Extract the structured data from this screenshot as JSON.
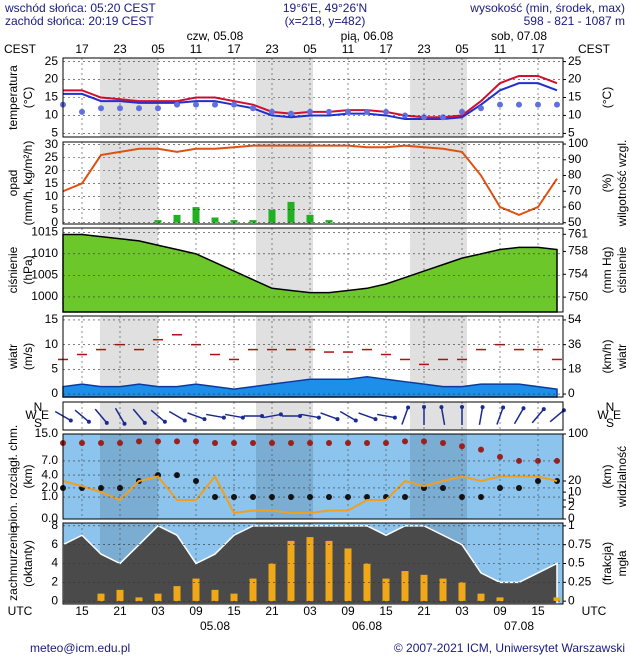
{
  "header": {
    "sunrise": "wschód słońca: 05:20 CEST",
    "sunset": "zachód słońca: 20:19 CEST",
    "coords": "19°6'E, 49°26'N",
    "grid": "(x=218, y=482)",
    "height_title": "wysokość (min, środek, max)",
    "height_values": "598 - 821 - 1087 m"
  },
  "time_axis": {
    "cest_label": "CEST",
    "cest_hours": [
      "17",
      "23",
      "05",
      "11",
      "17",
      "23",
      "05",
      "11",
      "17",
      "23",
      "05",
      "11",
      "17"
    ],
    "dates_top": [
      "czw, 05.08",
      "pią, 06.08",
      "sob, 07.08"
    ],
    "utc_label": "UTC",
    "utc_hours": [
      "15",
      "21",
      "03",
      "09",
      "15",
      "21",
      "03",
      "09",
      "15",
      "21",
      "03",
      "09",
      "15"
    ],
    "dates_bottom": [
      "05.08",
      "06.08",
      "07.08"
    ]
  },
  "footer": {
    "email": "meteo@icm.edu.pl",
    "copyright": "© 2007-2021 ICM, Uniwersytet Warszawski"
  },
  "chart_data": [
    {
      "type": "line",
      "left_label": [
        "temperatura",
        "(°C)"
      ],
      "right_label": [
        "(°C)"
      ],
      "background": "#ffffff",
      "grid": true,
      "ylim": [
        4,
        26
      ],
      "yticks": [
        5,
        10,
        15,
        20,
        25
      ],
      "y2lim": [
        4,
        26
      ],
      "y2ticks": [
        5,
        10,
        15,
        20,
        25
      ],
      "series": [
        {
          "kind": "line",
          "color": "#2030d0",
          "values": [
            16,
            16,
            14,
            14,
            13.5,
            13.5,
            13.5,
            14,
            14,
            13,
            12,
            10,
            9.5,
            10,
            10,
            10.5,
            10.5,
            10,
            9,
            9,
            9,
            9.5,
            13,
            17,
            19,
            19,
            17
          ]
        },
        {
          "kind": "line",
          "color": "#d01030",
          "values": [
            17,
            17,
            15,
            14.5,
            14,
            14,
            14,
            15,
            15,
            14,
            13,
            11,
            10.5,
            11,
            11,
            11.5,
            11.5,
            11,
            10,
            9.5,
            9.5,
            10,
            14,
            19,
            21,
            21,
            19
          ]
        },
        {
          "kind": "dots",
          "color": "#6070e0",
          "values": [
            13,
            11,
            12,
            12,
            12,
            12,
            13,
            13,
            13,
            13,
            12,
            11,
            10.5,
            11,
            11,
            11,
            11,
            11,
            10,
            9.5,
            9.5,
            11,
            12,
            13,
            13,
            13,
            13
          ]
        }
      ]
    },
    {
      "type": "bar",
      "left_label": [
        "opad",
        "(mm/h, kg/m²/h)"
      ],
      "right_label": [
        "(%)",
        "wilgotność wzgl."
      ],
      "background": "#ffffff",
      "grid": true,
      "ylim": [
        -0.5,
        31
      ],
      "yticks": [
        0,
        5,
        10,
        15,
        20,
        25,
        30
      ],
      "y2lim": [
        49.2,
        101.3
      ],
      "y2ticks": [
        50,
        60,
        70,
        80,
        90,
        100
      ],
      "series": [
        {
          "kind": "bar",
          "color": "#20b020",
          "values": [
            0,
            0,
            0,
            0,
            0,
            1,
            3,
            6,
            2,
            1,
            1,
            5,
            8,
            3,
            1,
            0,
            0,
            0,
            0,
            0,
            0,
            0,
            0,
            0,
            0,
            0,
            0
          ]
        },
        {
          "kind": "line",
          "axis": "y2",
          "color": "#e05010",
          "values": [
            70,
            75,
            93,
            95,
            97,
            97,
            95,
            97,
            97,
            98,
            99,
            99,
            99,
            99,
            99,
            99,
            98,
            98,
            99,
            98,
            97,
            95,
            80,
            60,
            55,
            60,
            78
          ]
        }
      ]
    },
    {
      "type": "area",
      "left_label": [
        "ciśnienie",
        "(hPa)"
      ],
      "right_label": [
        "(mm Hg)",
        "ciśnienie"
      ],
      "background": "#ffffff",
      "grid": true,
      "ylim": [
        996.5,
        1016
      ],
      "yticks": [
        1000,
        1005,
        1010,
        1015
      ],
      "y2lim": [
        747.4,
        762.1
      ],
      "y2ticks": [
        750,
        754,
        758,
        761
      ],
      "series": [
        {
          "kind": "area",
          "color": "#6cc82a",
          "line": "#000000",
          "values": [
            1014.5,
            1014.5,
            1014,
            1013.5,
            1013,
            1012,
            1011,
            1010,
            1008,
            1006,
            1004,
            1002,
            1001.5,
            1001,
            1001,
            1001.5,
            1002,
            1003,
            1004.5,
            1006,
            1007.5,
            1009,
            1010,
            1011,
            1011.5,
            1011.5,
            1011
          ]
        }
      ]
    },
    {
      "type": "area",
      "left_label": [
        "wiatr",
        "(m/s)"
      ],
      "right_label": [
        "(km/h)",
        "wiatr"
      ],
      "background": "#ffffff",
      "grid": true,
      "ylim": [
        -0.6,
        15.8
      ],
      "yticks": [
        0,
        5,
        10,
        15
      ],
      "y2lim": [
        -2.16,
        56.88
      ],
      "y2ticks": [
        0,
        18,
        36,
        54
      ],
      "series": [
        {
          "kind": "area",
          "color": "#1e8fe8",
          "line": "#0a3aa0",
          "values": [
            1.5,
            2,
            1.5,
            1.5,
            2,
            1.5,
            1.5,
            2,
            1.5,
            1,
            1.5,
            2,
            2.5,
            3,
            3,
            3,
            3.5,
            3,
            2.5,
            2,
            1.5,
            1.5,
            2,
            2,
            2,
            1.5,
            1
          ]
        },
        {
          "kind": "dashes",
          "color": "#b01010",
          "values": [
            7,
            8,
            9,
            10,
            9,
            11,
            12,
            10,
            8,
            7,
            9,
            9,
            9,
            9,
            8.5,
            8.5,
            9,
            8,
            7,
            6,
            7,
            7,
            9,
            10,
            9,
            9,
            7
          ]
        }
      ]
    },
    {
      "type": "arrows",
      "compass": [
        "N",
        "W",
        "E",
        "S"
      ],
      "background": "#ffffff",
      "series": [
        {
          "kind": "arrows",
          "color": "#1a2a90",
          "values": [
            300,
            310,
            320,
            330,
            320,
            310,
            300,
            290,
            280,
            280,
            270,
            260,
            270,
            280,
            290,
            300,
            290,
            280,
            200,
            180,
            170,
            180,
            190,
            200,
            210,
            220,
            230
          ]
        }
      ]
    },
    {
      "type": "scatter",
      "left_label": [
        "pion. rozciągł. chm.",
        "(km)"
      ],
      "right_label": [
        "(km)",
        "widzialność"
      ],
      "background": "#8cc4ee",
      "grid": true,
      "yscale": "sqrt",
      "ylim": [
        0,
        15
      ],
      "yticks": [
        {
          "value": 0,
          "label": "0.0"
        },
        {
          "value": 1,
          "label": "1.0"
        },
        {
          "value": 2,
          "label": "2.0"
        },
        {
          "value": 4,
          "label": "4.0"
        },
        {
          "value": 7,
          "label": "7.0"
        },
        {
          "value": 15,
          "label": "15.0"
        }
      ],
      "y2lim": [
        0,
        100
      ],
      "y2ticks": [
        0,
        2,
        5,
        10,
        20,
        100
      ],
      "series": [
        {
          "kind": "dots",
          "color": "#9a2020",
          "values": [
            12,
            12,
            12,
            12,
            12.5,
            12.5,
            12.5,
            12.5,
            12,
            12,
            12,
            12,
            12,
            12,
            12,
            12,
            12,
            12,
            12.5,
            12.5,
            12,
            11,
            10,
            8,
            7,
            7,
            7
          ]
        },
        {
          "kind": "dots",
          "color": "#101010",
          "values": [
            2,
            2,
            2,
            2,
            3,
            4,
            4,
            3,
            1,
            1,
            1,
            1,
            1,
            1,
            1,
            1,
            1,
            1,
            1,
            2,
            2,
            1,
            1,
            2,
            2,
            3,
            3
          ]
        },
        {
          "kind": "line",
          "axis": "y2",
          "color": "#f0a020",
          "values": [
            20,
            15,
            10,
            5,
            20,
            25,
            5,
            5,
            25,
            0.5,
            1,
            1,
            0.5,
            0.5,
            1,
            1,
            5,
            5,
            20,
            15,
            20,
            25,
            20,
            25,
            25,
            25,
            20
          ]
        }
      ]
    },
    {
      "type": "area",
      "left_label": [
        "zachmurzenie",
        "(oktanty)"
      ],
      "right_label": [
        "(frakcja)",
        "mgła"
      ],
      "background": "#8cc4ee",
      "grid": true,
      "ylim": [
        -0.3,
        8.3
      ],
      "yticks": [
        0,
        2,
        4,
        6,
        8
      ],
      "y2lim": [
        -0.0375,
        1.0375
      ],
      "y2ticks": [
        0,
        0.25,
        0.5,
        0.75,
        1
      ],
      "series": [
        {
          "kind": "area",
          "color": "#4a4a4a",
          "line": "#ffffff",
          "values": [
            6,
            7,
            5,
            4,
            6,
            8,
            7,
            4,
            5,
            7,
            8,
            8,
            8,
            8,
            8,
            8,
            8,
            7,
            8,
            8,
            7,
            6,
            3,
            2,
            2,
            3,
            4
          ]
        },
        {
          "kind": "bar",
          "axis": "y2",
          "color": "#f0a818",
          "values": [
            0,
            0,
            0.1,
            0.15,
            0.05,
            0.1,
            0.2,
            0.3,
            0.15,
            0.1,
            0.3,
            0.5,
            0.8,
            0.85,
            0.8,
            0.7,
            0.5,
            0.3,
            0.4,
            0.35,
            0.3,
            0.25,
            0.1,
            0.05,
            0,
            0,
            0.05
          ]
        }
      ]
    }
  ]
}
